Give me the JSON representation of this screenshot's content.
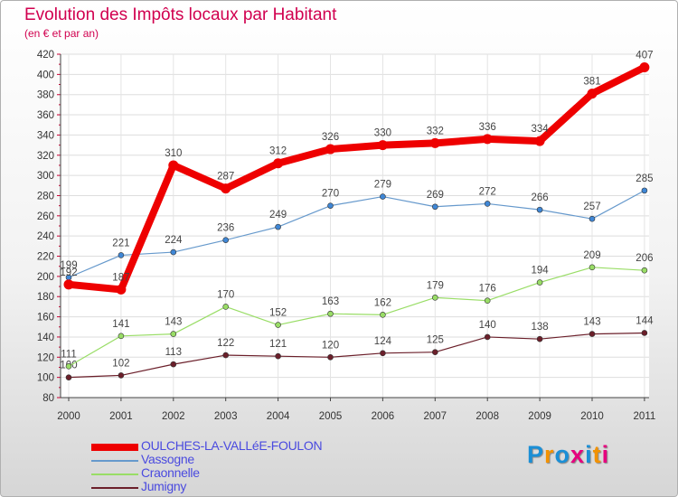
{
  "title": "Evolution des Impôts locaux par Habitant",
  "subtitle": "(en € et par an)",
  "logo": {
    "text": "Proxiti",
    "letters": [
      {
        "ch": "P",
        "color": "#1b8fd6"
      },
      {
        "ch": "r",
        "color": "#f39200"
      },
      {
        "ch": "o",
        "color": "#1b8fd6"
      },
      {
        "ch": "x",
        "color": "#e6007e"
      },
      {
        "ch": "i",
        "color": "#1b8fd6"
      },
      {
        "ch": "t",
        "color": "#f39200"
      },
      {
        "ch": "i",
        "color": "#e6007e"
      }
    ]
  },
  "chart_data": {
    "type": "line",
    "title": "Evolution des Impôts locaux par Habitant",
    "subtitle": "(en € et par an)",
    "xlabel": "",
    "ylabel": "",
    "ylim": [
      80,
      420
    ],
    "ytick_step": 20,
    "categories": [
      "2000",
      "2001",
      "2002",
      "2003",
      "2004",
      "2005",
      "2006",
      "2007",
      "2008",
      "2009",
      "2010",
      "2011"
    ],
    "series": [
      {
        "name": "Jumigny",
        "color": "#6b1f2a",
        "marker": "#6b1f2a",
        "width": 1.2,
        "values": [
          100,
          102,
          113,
          122,
          121,
          120,
          124,
          125,
          140,
          138,
          143,
          144
        ]
      },
      {
        "name": "Craonnelle",
        "color": "#99dd66",
        "marker": "#99dd66",
        "width": 1.2,
        "values": [
          111,
          141,
          143,
          170,
          152,
          163,
          162,
          179,
          176,
          194,
          209,
          206
        ]
      },
      {
        "name": "Vassogne",
        "color": "#6699cc",
        "marker": "#3f87d6",
        "width": 1.2,
        "values": [
          199,
          221,
          224,
          236,
          249,
          270,
          279,
          269,
          272,
          266,
          257,
          285
        ]
      },
      {
        "name": "OULCHES-LA-VALLéE-FOULON",
        "color": "#ee0000",
        "marker": "#ee0000",
        "width": 8,
        "values": [
          192,
          187,
          310,
          287,
          312,
          326,
          330,
          332,
          336,
          334,
          381,
          407
        ]
      }
    ],
    "legend": [
      "OULCHES-LA-VALLéE-FOULON",
      "Vassogne",
      "Craonnelle",
      "Jumigny"
    ],
    "legend_position": "bottom-left",
    "grid": true
  }
}
